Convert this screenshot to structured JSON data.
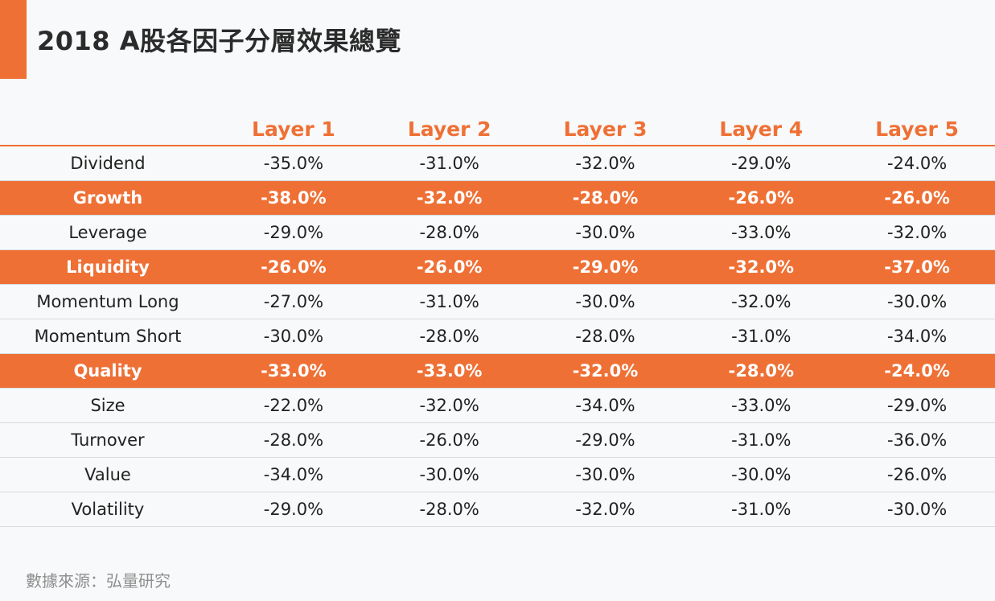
{
  "colors": {
    "accent": "#ef7035",
    "highlight_row": "#ef7035",
    "header_text": "#ef7035",
    "title_text": "#2b2b2b",
    "body_text": "#222222",
    "source_text": "#8e8e8e"
  },
  "title": "2018 A股各因子分層效果總覽",
  "source": "數據來源：弘量研究",
  "chart_data": {
    "type": "table",
    "title": "2018 A股各因子分層效果總覽",
    "columns": [
      "",
      "Layer 1",
      "Layer 2",
      "Layer 3",
      "Layer 4",
      "Layer 5"
    ],
    "rows": [
      {
        "factor": "Dividend",
        "highlight": false,
        "values": [
          "-35.0%",
          "-31.0%",
          "-32.0%",
          "-29.0%",
          "-24.0%"
        ]
      },
      {
        "factor": "Growth",
        "highlight": true,
        "values": [
          "-38.0%",
          "-32.0%",
          "-28.0%",
          "-26.0%",
          "-26.0%"
        ]
      },
      {
        "factor": "Leverage",
        "highlight": false,
        "values": [
          "-29.0%",
          "-28.0%",
          "-30.0%",
          "-33.0%",
          "-32.0%"
        ]
      },
      {
        "factor": "Liquidity",
        "highlight": true,
        "values": [
          "-26.0%",
          "-26.0%",
          "-29.0%",
          "-32.0%",
          "-37.0%"
        ]
      },
      {
        "factor": "Momentum Long",
        "highlight": false,
        "values": [
          "-27.0%",
          "-31.0%",
          "-30.0%",
          "-32.0%",
          "-30.0%"
        ]
      },
      {
        "factor": "Momentum Short",
        "highlight": false,
        "values": [
          "-30.0%",
          "-28.0%",
          "-28.0%",
          "-31.0%",
          "-34.0%"
        ]
      },
      {
        "factor": "Quality",
        "highlight": true,
        "values": [
          "-33.0%",
          "-33.0%",
          "-32.0%",
          "-28.0%",
          "-24.0%"
        ]
      },
      {
        "factor": "Size",
        "highlight": false,
        "values": [
          "-22.0%",
          "-32.0%",
          "-34.0%",
          "-33.0%",
          "-29.0%"
        ]
      },
      {
        "factor": "Turnover",
        "highlight": false,
        "values": [
          "-28.0%",
          "-26.0%",
          "-29.0%",
          "-31.0%",
          "-36.0%"
        ]
      },
      {
        "factor": "Value",
        "highlight": false,
        "values": [
          "-34.0%",
          "-30.0%",
          "-30.0%",
          "-30.0%",
          "-26.0%"
        ]
      },
      {
        "factor": "Volatility",
        "highlight": false,
        "values": [
          "-29.0%",
          "-28.0%",
          "-32.0%",
          "-31.0%",
          "-30.0%"
        ]
      }
    ]
  }
}
